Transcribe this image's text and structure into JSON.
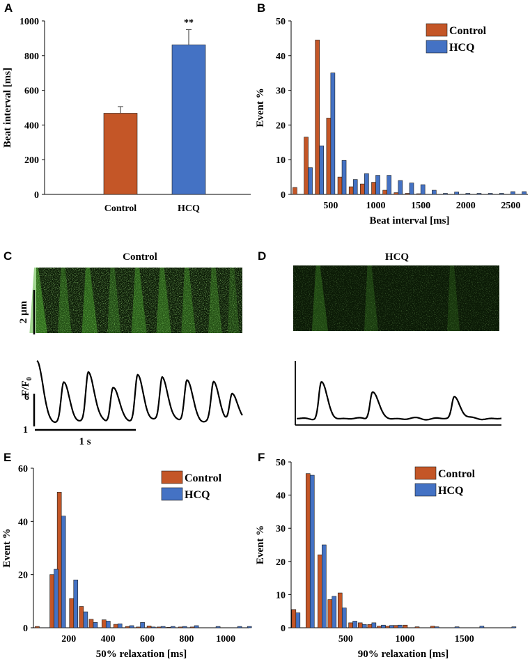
{
  "colors": {
    "control": "#C45627",
    "hcq": "#4472C4",
    "axis": "#000000",
    "kymo_bg": "#0b1a06",
    "kymo_signal": "#53b534"
  },
  "chart_data": [
    {
      "id": "A",
      "type": "bar",
      "panel_label": "A",
      "categories": [
        "Control",
        "HCQ"
      ],
      "values": [
        468,
        862
      ],
      "errors": [
        38,
        88
      ],
      "annotations": [
        "",
        "**"
      ],
      "ylabel": "Beat interval [ms]",
      "xlabel": "",
      "ylim": [
        0,
        1000
      ],
      "yticks": [
        0,
        200,
        400,
        600,
        800,
        1000
      ]
    },
    {
      "id": "B",
      "type": "bar",
      "panel_label": "B",
      "x": [
        125,
        250,
        375,
        500,
        625,
        750,
        875,
        1000,
        1125,
        1250,
        1375,
        1500,
        1625,
        1750,
        1875,
        2000,
        2125,
        2250,
        2375,
        2500,
        2625
      ],
      "series": [
        {
          "name": "Control",
          "values": [
            2,
            16.5,
            44.5,
            22,
            5,
            2.2,
            3,
            3.5,
            1.2,
            0.5,
            0.3,
            0.2,
            0,
            0,
            0,
            0,
            0,
            0,
            0,
            0,
            0
          ]
        },
        {
          "name": "HCQ",
          "values": [
            0,
            7.7,
            14,
            35,
            9.8,
            4.3,
            6,
            5.5,
            5.5,
            4,
            3.3,
            2.8,
            1.2,
            0.3,
            0.7,
            0.3,
            0.3,
            0.3,
            0.3,
            0.8,
            0.8
          ]
        }
      ],
      "xlabel": "Beat interval [ms]",
      "ylabel": "Event %",
      "xlim": [
        60,
        2690
      ],
      "ylim": [
        0,
        50
      ],
      "xticks": [
        500,
        1000,
        1500,
        2000,
        2500
      ],
      "yticks": [
        0,
        10,
        20,
        30,
        40,
        50
      ],
      "legend": [
        "Control",
        "HCQ"
      ],
      "legend_position": "top-right"
    },
    {
      "id": "E",
      "type": "bar",
      "panel_label": "E",
      "x": [
        50,
        125,
        162.5,
        225,
        275,
        325,
        390,
        450,
        510,
        565,
        620,
        670,
        720,
        780,
        840,
        950,
        1060,
        1110
      ],
      "series": [
        {
          "name": "Control",
          "values": [
            0.5,
            20,
            51,
            11,
            8,
            3.2,
            3,
            1.3,
            0.5,
            0.3,
            0.7,
            0.3,
            0.2,
            0.3,
            0.3,
            0,
            0,
            0
          ]
        },
        {
          "name": "HCQ",
          "values": [
            0,
            22,
            42,
            18,
            6,
            2,
            2.5,
            1.5,
            0.8,
            2,
            0.3,
            0.5,
            0.5,
            0.5,
            0.8,
            0.5,
            0.5,
            0.5
          ]
        }
      ],
      "xlabel": "50% relaxation [ms]",
      "ylabel": "Event %",
      "xlim": [
        20,
        1120
      ],
      "ylim": [
        0,
        60
      ],
      "xticks": [
        200,
        400,
        600,
        800,
        1000
      ],
      "yticks": [
        0,
        20,
        40,
        60
      ],
      "legend": [
        "Control",
        "HCQ"
      ],
      "legend_position": "top-right"
    },
    {
      "id": "F",
      "type": "bar",
      "panel_label": "F",
      "x": [
        80,
        200,
        300,
        385,
        470,
        560,
        640,
        720,
        800,
        870,
        940,
        1020,
        1120,
        1250,
        1420,
        1630,
        1900
      ],
      "series": [
        {
          "name": "Control",
          "values": [
            5.5,
            46.5,
            22,
            8.5,
            10.5,
            1.5,
            1.5,
            1,
            0.5,
            0.5,
            0.7,
            0.8,
            0.3,
            0.5,
            0,
            0,
            0
          ]
        },
        {
          "name": "HCQ",
          "values": [
            4.5,
            46,
            25,
            9.5,
            6,
            2,
            1,
            1.5,
            0.8,
            0.7,
            0.8,
            0,
            0,
            0.3,
            0.3,
            0.5,
            0.3
          ]
        }
      ],
      "xlabel": "90% relaxation [ms]",
      "ylabel": "Event %",
      "xlim": [
        40,
        1930
      ],
      "ylim": [
        0,
        50
      ],
      "xticks": [
        500,
        1000,
        1500
      ],
      "yticks": [
        0,
        10,
        20,
        30,
        40,
        50
      ],
      "legend": [
        "Control",
        "HCQ"
      ],
      "legend_position": "top-right"
    }
  ],
  "kymographs": {
    "C": {
      "panel_label": "C",
      "title": "Control",
      "scale_bar_label": "2 µm",
      "y_label": "F/F",
      "y_subscript": "0",
      "y_scale_top": "6",
      "y_scale_bottom": "1",
      "time_scale_label": "1 s",
      "peak_times": [
        0.0,
        0.13,
        0.25,
        0.37,
        0.49,
        0.61,
        0.73,
        0.86,
        0.95
      ],
      "peak_heights": [
        1.0,
        0.62,
        0.82,
        0.58,
        0.77,
        0.74,
        0.68,
        0.63,
        0.45
      ]
    },
    "D": {
      "panel_label": "D",
      "title": "HCQ",
      "peak_times": [
        0.12,
        0.37,
        0.77
      ],
      "peak_heights": [
        0.85,
        0.65,
        0.52
      ]
    }
  }
}
